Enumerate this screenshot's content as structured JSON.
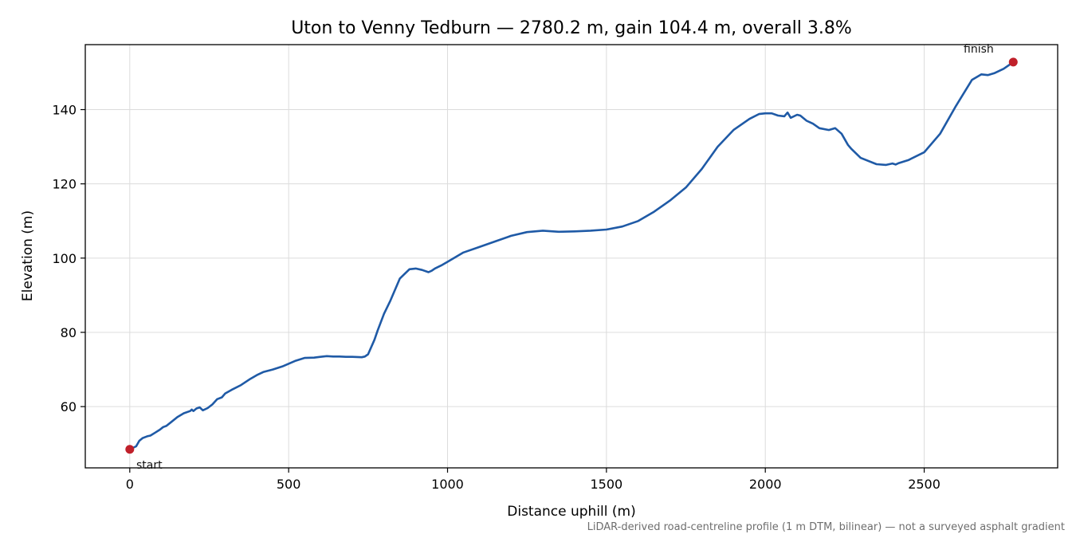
{
  "chart_data": {
    "type": "line",
    "title": "Uton to Venny Tedburn — 2780.2 m, gain 104.4 m, overall 3.8%",
    "xlabel": "Distance uphill (m)",
    "ylabel": "Elevation (m)",
    "xlim": [
      -140,
      2920
    ],
    "ylim": [
      43.5,
      157.5
    ],
    "xticks": [
      0,
      500,
      1000,
      1500,
      2000,
      2500
    ],
    "yticks": [
      60,
      80,
      100,
      120,
      140
    ],
    "grid": true,
    "line_color": "#1f5aa6",
    "marker_color": "#c0202a",
    "series": [
      {
        "x": [
          0,
          20,
          30,
          40,
          55,
          65,
          80,
          95,
          105,
          115,
          130,
          150,
          170,
          190,
          195,
          200,
          210,
          220,
          230,
          245,
          260,
          275,
          290,
          300,
          320,
          350,
          380,
          400,
          420,
          450,
          480,
          520,
          550,
          580,
          600,
          620,
          640,
          660,
          680,
          700,
          730,
          740,
          750,
          770,
          780,
          800,
          820,
          850,
          880,
          900,
          920,
          940,
          950,
          960,
          980,
          1000,
          1050,
          1100,
          1150,
          1200,
          1250,
          1300,
          1350,
          1400,
          1450,
          1500,
          1550,
          1600,
          1650,
          1700,
          1750,
          1800,
          1850,
          1900,
          1950,
          1980,
          2000,
          2020,
          2040,
          2060,
          2070,
          2080,
          2100,
          2110,
          2130,
          2150,
          2170,
          2200,
          2220,
          2240,
          2260,
          2270,
          2300,
          2350,
          2380,
          2400,
          2410,
          2420,
          2450,
          2500,
          2550,
          2600,
          2650,
          2680,
          2700,
          2720,
          2750,
          2780.2
        ],
        "y": [
          48.5,
          49.3,
          50.8,
          51.5,
          52.0,
          52.2,
          53.0,
          53.8,
          54.5,
          54.8,
          55.8,
          57.2,
          58.2,
          58.8,
          59.2,
          58.8,
          59.5,
          59.8,
          59.0,
          59.6,
          60.6,
          62.0,
          62.5,
          63.5,
          64.5,
          65.8,
          67.5,
          68.5,
          69.3,
          70.0,
          70.8,
          72.3,
          73.1,
          73.2,
          73.4,
          73.6,
          73.5,
          73.5,
          73.4,
          73.4,
          73.3,
          73.5,
          74.1,
          78.0,
          80.5,
          85.0,
          88.5,
          94.5,
          97.0,
          97.2,
          96.8,
          96.2,
          96.6,
          97.2,
          98.0,
          99.0,
          101.5,
          103.0,
          104.5,
          106.0,
          107.0,
          107.4,
          107.1,
          107.2,
          107.4,
          107.7,
          108.5,
          110.0,
          112.5,
          115.5,
          119.0,
          124.0,
          130.0,
          134.5,
          137.5,
          138.8,
          139.0,
          139.0,
          138.4,
          138.2,
          139.2,
          137.8,
          138.6,
          138.4,
          137.0,
          136.2,
          135.0,
          134.5,
          135.0,
          133.5,
          130.5,
          129.5,
          127.0,
          125.3,
          125.1,
          125.5,
          125.2,
          125.6,
          126.4,
          128.5,
          133.5,
          141.0,
          148.0,
          149.5,
          149.3,
          149.8,
          151.0,
          152.8
        ]
      }
    ],
    "annotations": [
      {
        "text": "start",
        "x": 0,
        "y": 48.5
      },
      {
        "text": "finish",
        "x": 2780.2,
        "y": 152.8
      }
    ],
    "footnote": "LiDAR-derived road-centreline profile (1 m DTM, bilinear) — not a surveyed asphalt gradient"
  }
}
